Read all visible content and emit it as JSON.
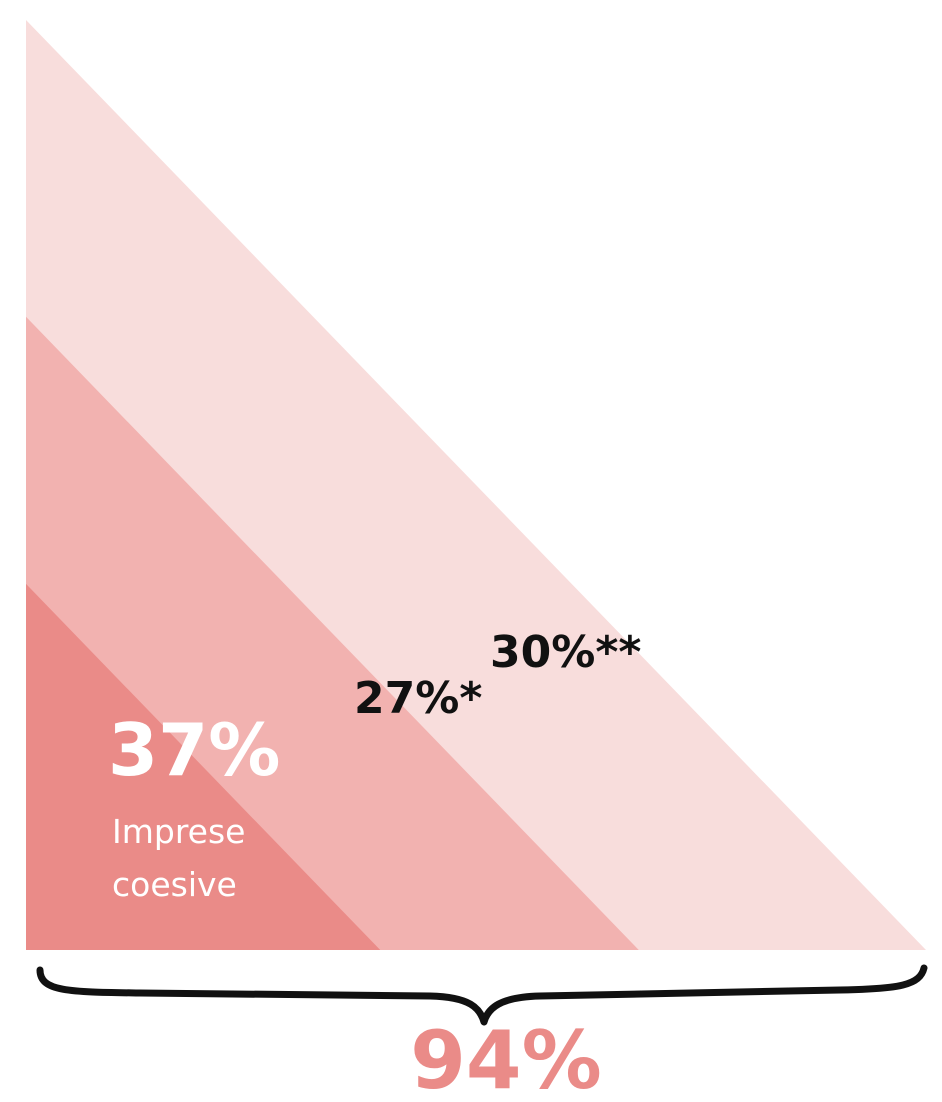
{
  "chart_data": {
    "type": "area",
    "layers": [
      {
        "value": 37,
        "label": "37%",
        "description_lines": [
          "Imprese",
          "coesive"
        ],
        "color": "#ea8b88"
      },
      {
        "value": 27,
        "label": "27%*",
        "color": "#f2b2b0"
      },
      {
        "value": 30,
        "label": "30%**",
        "color": "#f8dddc"
      }
    ],
    "total": {
      "value": 94,
      "label": "94%",
      "color": "#ea8b88"
    },
    "base_text_color": "#ffffff",
    "layer_label_color": "#111111",
    "brace_color": "#111111"
  }
}
